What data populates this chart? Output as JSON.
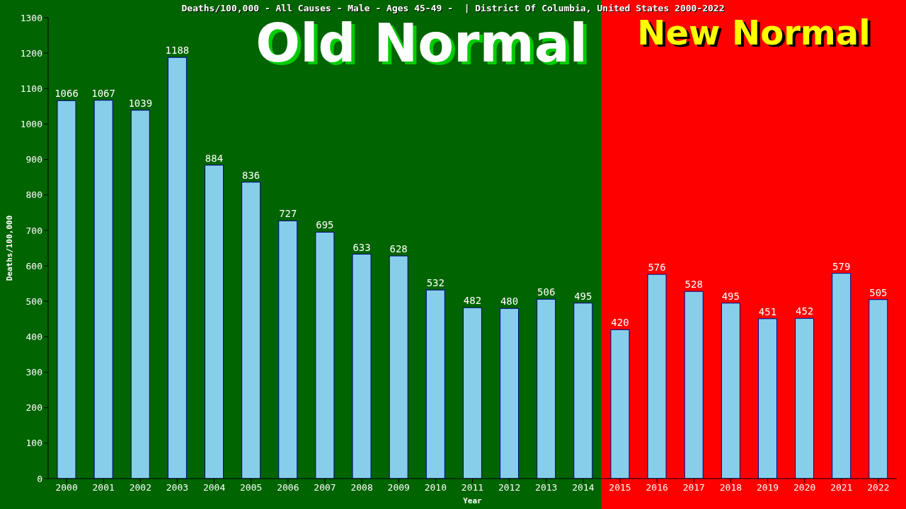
{
  "chart_data": {
    "type": "bar",
    "title": "Deaths/100,000 - All Causes - Male - Ages 45-49 -  | District Of Columbia, United States 2000-2022",
    "xlabel": "Year",
    "ylabel": "Deaths/100,000",
    "categories": [
      "2000",
      "2001",
      "2002",
      "2003",
      "2004",
      "2005",
      "2006",
      "2007",
      "2008",
      "2009",
      "2010",
      "2011",
      "2012",
      "2013",
      "2014",
      "2015",
      "2016",
      "2017",
      "2018",
      "2019",
      "2020",
      "2021",
      "2022"
    ],
    "values": [
      1066,
      1067,
      1039,
      1188,
      884,
      836,
      727,
      695,
      633,
      628,
      532,
      482,
      480,
      506,
      495,
      420,
      576,
      528,
      495,
      451,
      452,
      579,
      505
    ],
    "color": "#87ceeb",
    "ylim": [
      0,
      1300
    ],
    "yticks": [
      0,
      100,
      200,
      300,
      400,
      500,
      600,
      700,
      800,
      900,
      1000,
      1100,
      1200,
      1300
    ],
    "grid": false,
    "data_labels": true,
    "legend": false,
    "bands": [
      {
        "axis": "x",
        "from": "2000",
        "to": "2014",
        "label": "Old Normal",
        "color": "#006400"
      },
      {
        "axis": "x",
        "from": "2015",
        "to": "2022",
        "label": "New Normal",
        "color": "#ff0000"
      }
    ]
  }
}
